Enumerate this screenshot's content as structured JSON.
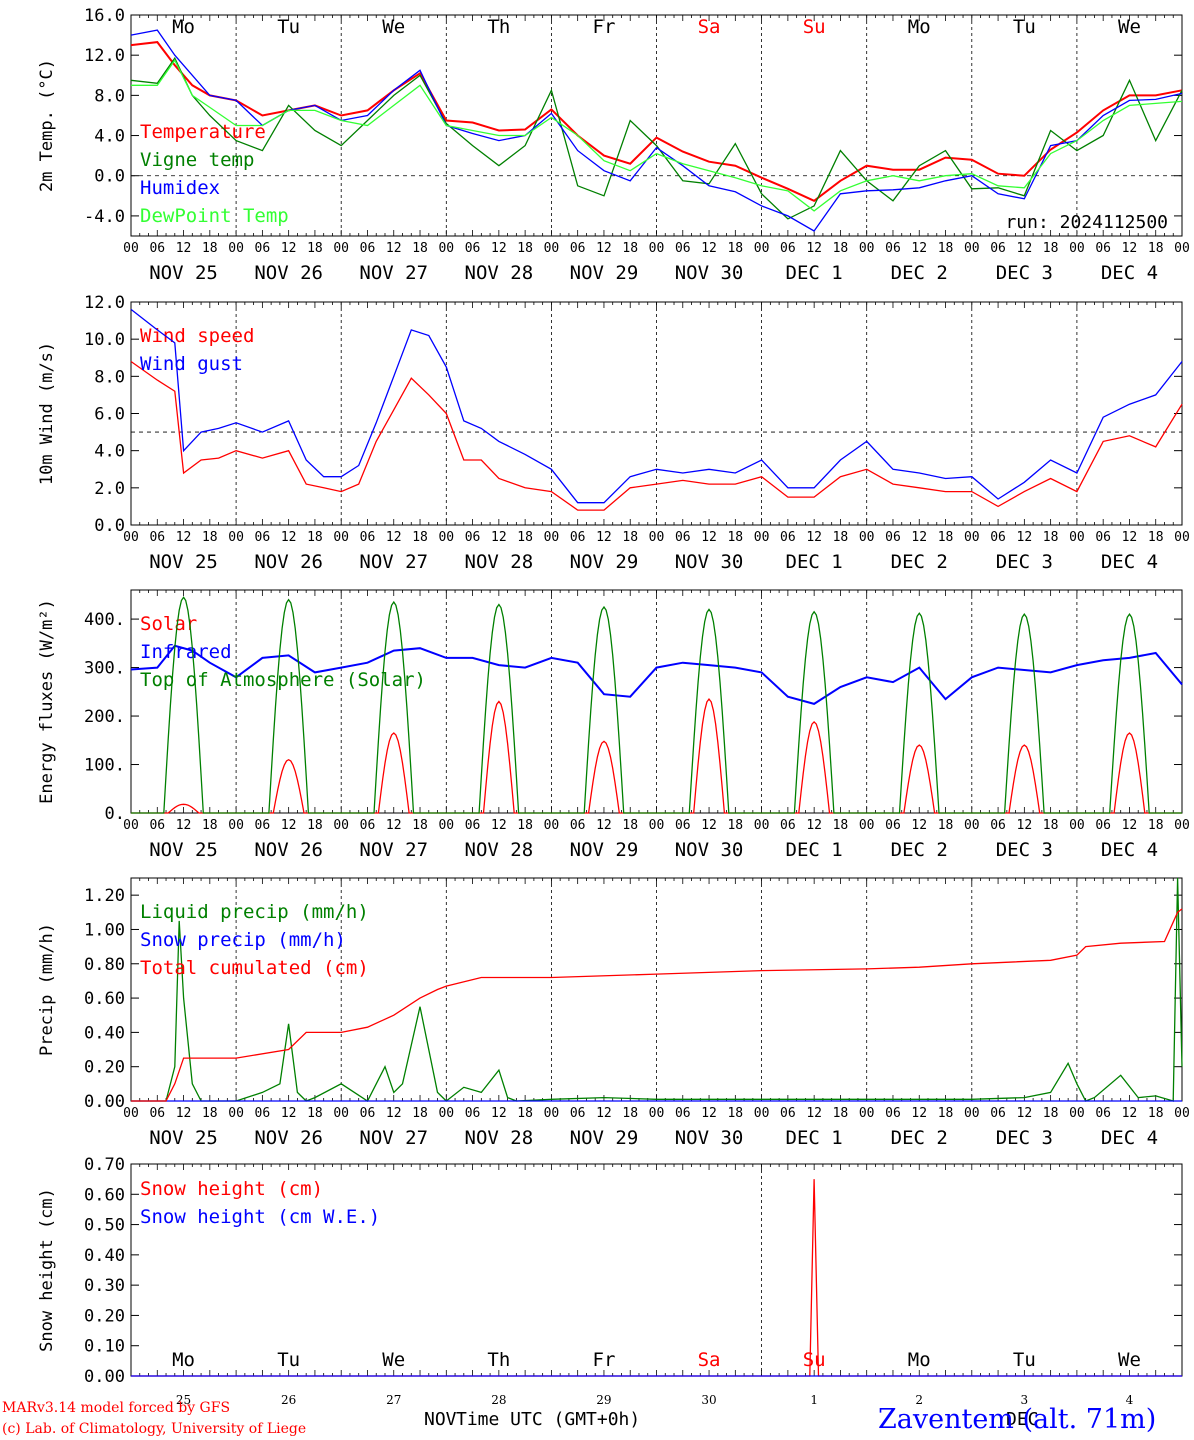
{
  "days": {
    "weekdays": [
      "Mo",
      "Tu",
      "We",
      "Th",
      "Fr",
      "Sa",
      "Su",
      "Mo",
      "Tu",
      "We"
    ],
    "weekday_colors": [
      "#000000",
      "#000000",
      "#000000",
      "#000000",
      "#000000",
      "#ff0000",
      "#ff0000",
      "#000000",
      "#000000",
      "#000000"
    ],
    "date_labels": [
      "NOV 25",
      "NOV 26",
      "NOV 27",
      "NOV 28",
      "NOV 29",
      "NOV 30",
      "DEC  1",
      "DEC  2",
      "DEC  3",
      "DEC  4"
    ],
    "hour_ticks": [
      "00",
      "06",
      "12",
      "18"
    ],
    "last_hour": "00",
    "day_numbers": [
      "25",
      "26",
      "27",
      "28",
      "29",
      "30",
      "1",
      "2",
      "3",
      "4"
    ]
  },
  "footer": {
    "credit_line1": "MARv3.14 model forced by GFS",
    "credit_line2": "(c) Lab. of Climatology, University of Liege",
    "month_left": "NOV",
    "month_right": "DEC",
    "xlabel": "Time UTC (GMT+0h)",
    "station": "Zaventem (alt. 71m)"
  },
  "chart_data": [
    {
      "type": "line",
      "ylabel": "2m Temp. (°C)",
      "ylim": [
        -6,
        16
      ],
      "yticks": [
        "16.0",
        "12.0",
        "8.0",
        "4.0",
        "0.0",
        "-4.0"
      ],
      "ytick_values": [
        16,
        12,
        8,
        4,
        0,
        -4
      ],
      "grid": "vertical dotted day separators, dashed reference at 0.0",
      "run_label": "run: 2024112500",
      "x_hours_start": 0,
      "x_hours_end": 240,
      "series": [
        {
          "name": "Temperature",
          "color": "#ff0000",
          "x": [
            0,
            6,
            10,
            14,
            18,
            24,
            30,
            36,
            42,
            48,
            54,
            60,
            66,
            72,
            78,
            84,
            90,
            96,
            102,
            108,
            114,
            120,
            126,
            132,
            138,
            144,
            150,
            156,
            162,
            168,
            174,
            180,
            186,
            192,
            198,
            204,
            210,
            216,
            222,
            228,
            234,
            240
          ],
          "values": [
            13,
            13.3,
            11,
            9,
            8,
            7.5,
            6,
            6.5,
            7,
            6,
            6.5,
            8.5,
            10.2,
            5.5,
            5.3,
            4.5,
            4.6,
            6.6,
            4,
            2,
            1.2,
            3.8,
            2.4,
            1.4,
            1,
            -0.2,
            -1.3,
            -2.5,
            -0.5,
            1,
            0.6,
            0.6,
            1.8,
            1.6,
            0.2,
            0,
            2.6,
            4.3,
            6.5,
            8,
            8,
            8.5
          ]
        },
        {
          "name": "Vigne temp",
          "color": "#008000",
          "x": [
            0,
            6,
            10,
            14,
            18,
            24,
            30,
            36,
            42,
            48,
            54,
            60,
            66,
            72,
            78,
            84,
            90,
            96,
            102,
            108,
            114,
            120,
            126,
            132,
            138,
            144,
            150,
            156,
            162,
            168,
            174,
            180,
            186,
            192,
            198,
            204,
            210,
            216,
            222,
            228,
            234,
            240
          ],
          "values": [
            9.5,
            9.2,
            11.7,
            8,
            6,
            3.5,
            2.5,
            7,
            4.5,
            3,
            5.5,
            8,
            10,
            5.2,
            3,
            1,
            3,
            8.5,
            -1,
            -2,
            5.5,
            3,
            -0.5,
            -0.8,
            3.2,
            -1.8,
            -4.3,
            -3,
            2.5,
            -0.5,
            -2.5,
            1,
            2.5,
            -1.3,
            -1.2,
            -2,
            4.5,
            2.5,
            4,
            9.5,
            3.5,
            8.5
          ]
        },
        {
          "name": "Humidex",
          "color": "#0000ff",
          "x": [
            0,
            6,
            10,
            14,
            18,
            24,
            30,
            36,
            42,
            48,
            54,
            60,
            66,
            72,
            78,
            84,
            90,
            96,
            102,
            108,
            114,
            120,
            126,
            132,
            138,
            144,
            150,
            156,
            162,
            168,
            174,
            180,
            186,
            192,
            198,
            204,
            210,
            216,
            222,
            228,
            234,
            240
          ],
          "values": [
            14,
            14.5,
            12,
            10,
            8,
            7.5,
            5,
            6.5,
            7,
            5.5,
            6,
            8.5,
            10.5,
            5,
            4.2,
            3.5,
            4,
            6.2,
            2.5,
            0.5,
            -0.5,
            2.8,
            1,
            -1,
            -1.6,
            -3,
            -4,
            -5.5,
            -1.8,
            -1.5,
            -1.4,
            -1.2,
            -0.5,
            0,
            -1.8,
            -2.3,
            3,
            3.5,
            6,
            7.5,
            7.6,
            8.2
          ]
        },
        {
          "name": "DewPoint Temp",
          "color": "#33ff33",
          "x": [
            0,
            6,
            10,
            14,
            18,
            24,
            30,
            36,
            42,
            48,
            54,
            60,
            66,
            72,
            78,
            84,
            90,
            96,
            102,
            108,
            114,
            120,
            126,
            132,
            138,
            144,
            150,
            156,
            162,
            168,
            174,
            180,
            186,
            192,
            198,
            204,
            210,
            216,
            222,
            228,
            234,
            240
          ],
          "values": [
            9,
            9,
            11.5,
            8,
            6.8,
            5,
            5,
            6.5,
            6.5,
            5.5,
            5,
            7,
            9,
            5,
            4.5,
            4,
            4,
            5.8,
            4,
            1.5,
            0.5,
            2.2,
            1.2,
            0.5,
            -0.2,
            -1,
            -1.5,
            -3.5,
            -1.5,
            -0.5,
            0,
            -0.5,
            0,
            0.2,
            -1,
            -1.2,
            2.2,
            3.5,
            5.5,
            7,
            7.2,
            7.4
          ]
        }
      ]
    },
    {
      "type": "line",
      "ylabel": "10m Wind (m/s)",
      "ylim": [
        0,
        12
      ],
      "yticks": [
        "12.0",
        "10.0",
        "8.0",
        "6.0",
        "4.0",
        "2.0",
        "0.0"
      ],
      "ytick_values": [
        12,
        10,
        8,
        6,
        4,
        2,
        0
      ],
      "grid": "vertical dotted day separators, dashed reference at 5.0",
      "x_hours_start": 0,
      "x_hours_end": 240,
      "series": [
        {
          "name": "Wind speed",
          "color": "#ff0000",
          "x": [
            0,
            6,
            10,
            12,
            16,
            20,
            24,
            30,
            36,
            40,
            44,
            48,
            52,
            56,
            60,
            64,
            68,
            72,
            76,
            80,
            84,
            90,
            96,
            102,
            108,
            114,
            120,
            126,
            132,
            138,
            144,
            150,
            156,
            162,
            168,
            174,
            180,
            186,
            192,
            198,
            204,
            210,
            216,
            222,
            228,
            234,
            240
          ],
          "values": [
            8.8,
            7.8,
            7.2,
            2.8,
            3.5,
            3.6,
            4,
            3.6,
            4,
            2.2,
            2,
            1.8,
            2.2,
            4.5,
            6.2,
            7.9,
            7,
            6,
            3.5,
            3.5,
            2.5,
            2,
            1.8,
            0.8,
            0.8,
            2,
            2.2,
            2.4,
            2.2,
            2.2,
            2.6,
            1.5,
            1.5,
            2.6,
            3,
            2.2,
            2,
            1.8,
            1.8,
            1,
            1.8,
            2.5,
            1.8,
            4.5,
            4.8,
            4.2,
            6.5
          ]
        },
        {
          "name": "Wind gust",
          "color": "#0000ff",
          "x": [
            0,
            6,
            10,
            12,
            16,
            20,
            24,
            30,
            36,
            40,
            44,
            48,
            52,
            56,
            60,
            64,
            68,
            72,
            76,
            80,
            84,
            90,
            96,
            102,
            108,
            114,
            120,
            126,
            132,
            138,
            144,
            150,
            156,
            162,
            168,
            174,
            180,
            186,
            192,
            198,
            204,
            210,
            216,
            222,
            228,
            234,
            240
          ],
          "values": [
            11.6,
            10.5,
            9.8,
            4,
            5,
            5.2,
            5.5,
            5,
            5.6,
            3.5,
            2.6,
            2.6,
            3.2,
            5.5,
            8,
            10.5,
            10.2,
            8.5,
            5.6,
            5.2,
            4.5,
            3.8,
            3,
            1.2,
            1.2,
            2.6,
            3,
            2.8,
            3,
            2.8,
            3.5,
            2,
            2,
            3.5,
            4.5,
            3,
            2.8,
            2.5,
            2.6,
            1.4,
            2.3,
            3.5,
            2.8,
            5.8,
            6.5,
            7,
            8.8
          ]
        }
      ]
    },
    {
      "type": "line",
      "ylabel": "Energy fluxes (W/m²)",
      "ylim": [
        0,
        460
      ],
      "yticks": [
        "400.",
        "300.",
        "200.",
        "100.",
        "0."
      ],
      "ytick_values": [
        400,
        300,
        200,
        100,
        0
      ],
      "grid": "vertical dotted day separators",
      "x_hours_start": 0,
      "x_hours_end": 240,
      "series": [
        {
          "name": "Solar",
          "color": "#ff0000",
          "day_peaks": [
            18,
            110,
            165,
            230,
            148,
            235,
            188,
            140,
            140,
            165
          ]
        },
        {
          "name": "Infrared",
          "color": "#0000ff",
          "x": [
            0,
            6,
            10,
            14,
            18,
            24,
            30,
            36,
            42,
            48,
            54,
            60,
            66,
            72,
            78,
            84,
            90,
            96,
            102,
            108,
            114,
            120,
            126,
            132,
            138,
            144,
            150,
            156,
            162,
            168,
            174,
            180,
            186,
            192,
            198,
            204,
            210,
            216,
            222,
            228,
            234,
            240
          ],
          "values": [
            296,
            300,
            345,
            335,
            310,
            280,
            320,
            325,
            290,
            300,
            310,
            335,
            340,
            320,
            320,
            305,
            300,
            320,
            310,
            245,
            240,
            300,
            310,
            305,
            300,
            290,
            240,
            225,
            260,
            280,
            270,
            300,
            235,
            280,
            300,
            295,
            290,
            305,
            315,
            320,
            330,
            265
          ]
        },
        {
          "name": "Top of Atmosphere (Solar)",
          "color": "#008000",
          "day_peaks": [
            445,
            440,
            435,
            430,
            425,
            420,
            415,
            412,
            410,
            410
          ]
        }
      ]
    },
    {
      "type": "line",
      "ylabel": "Precip (mm/h)",
      "ylim": [
        0,
        1.3
      ],
      "yticks": [
        "1.20",
        "1.00",
        "0.80",
        "0.60",
        "0.40",
        "0.20",
        "0.00"
      ],
      "ytick_values": [
        1.2,
        1.0,
        0.8,
        0.6,
        0.4,
        0.2,
        0
      ],
      "grid": "vertical dotted day separators",
      "x_hours_start": 0,
      "x_hours_end": 240,
      "series": [
        {
          "name": "Liquid precip (mm/h)",
          "color": "#008000",
          "x": [
            0,
            8,
            10,
            11,
            12,
            14,
            16,
            24,
            30,
            34,
            36,
            38,
            40,
            42,
            48,
            54,
            58,
            60,
            62,
            66,
            70,
            72,
            76,
            80,
            84,
            86,
            88,
            96,
            108,
            120,
            132,
            144,
            156,
            168,
            180,
            192,
            204,
            210,
            214,
            216,
            218,
            220,
            226,
            230,
            234,
            238,
            239,
            240
          ],
          "values": [
            0,
            0,
            0.2,
            1.05,
            0.6,
            0.1,
            0,
            0,
            0.05,
            0.1,
            0.45,
            0.05,
            0,
            0.02,
            0.1,
            0,
            0.2,
            0.05,
            0.1,
            0.55,
            0.05,
            0,
            0.08,
            0.05,
            0.18,
            0.02,
            0,
            0.01,
            0.02,
            0.01,
            0.01,
            0.01,
            0.01,
            0.01,
            0.01,
            0.01,
            0.02,
            0.05,
            0.22,
            0.1,
            0,
            0.02,
            0.15,
            0.02,
            0.03,
            0,
            1.3,
            0.2
          ]
        },
        {
          "name": "Snow precip (mm/h)",
          "color": "#0000ff",
          "x": [
            0,
            240
          ],
          "values": [
            0,
            0
          ]
        },
        {
          "name": "Total cumulated (cm)",
          "color": "#ff0000",
          "x": [
            0,
            8,
            10,
            12,
            24,
            36,
            40,
            48,
            54,
            60,
            66,
            70,
            72,
            80,
            96,
            120,
            144,
            168,
            180,
            192,
            210,
            216,
            218,
            226,
            236,
            239,
            240
          ],
          "values": [
            0,
            0,
            0.1,
            0.25,
            0.25,
            0.3,
            0.4,
            0.4,
            0.43,
            0.5,
            0.6,
            0.65,
            0.67,
            0.72,
            0.72,
            0.74,
            0.76,
            0.77,
            0.78,
            0.8,
            0.82,
            0.85,
            0.9,
            0.92,
            0.93,
            1.1,
            1.12
          ]
        }
      ]
    },
    {
      "type": "line",
      "ylabel": "Snow height (cm)",
      "ylim": [
        0,
        0.7
      ],
      "yticks": [
        "0.70",
        "0.60",
        "0.50",
        "0.40",
        "0.30",
        "0.20",
        "0.10",
        "0.00"
      ],
      "ytick_values": [
        0.7,
        0.6,
        0.5,
        0.4,
        0.3,
        0.2,
        0.1,
        0
      ],
      "grid": "vertical dotted separator at Dec 1",
      "x_hours_start": 0,
      "x_hours_end": 240,
      "series": [
        {
          "name": "Snow height (cm)",
          "color": "#ff0000",
          "x": [
            0,
            155,
            156,
            157,
            240
          ],
          "values": [
            0,
            0,
            0.65,
            0,
            0
          ]
        },
        {
          "name": "Snow height (cm W.E.)",
          "color": "#0000ff",
          "x": [
            0,
            240
          ],
          "values": [
            0,
            0
          ]
        }
      ]
    }
  ]
}
